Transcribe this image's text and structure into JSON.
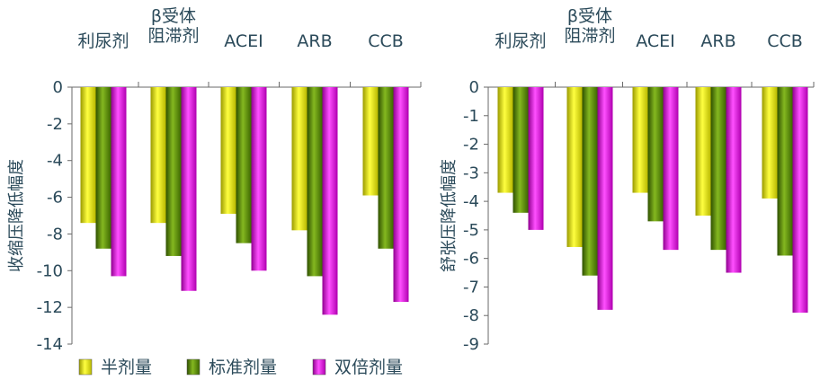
{
  "colors": {
    "half": "#e6e600",
    "standard": "#5a8a00",
    "double": "#e010e0",
    "text": "#2b4a5a",
    "axis": "#6a6a6a"
  },
  "legend": [
    "半剂量",
    "标准剂量",
    "双倍剂量"
  ],
  "chart_data": [
    {
      "type": "bar",
      "categories": [
        "利尿剂",
        "β受体阻滞剂",
        "ACEI",
        "ARB",
        "CCB"
      ],
      "category_lines": [
        [
          "利尿剂"
        ],
        [
          "β受体",
          "阻滞剂"
        ],
        [
          "ACEI"
        ],
        [
          "ARB"
        ],
        [
          "CCB"
        ]
      ],
      "ylabel": "收缩压降低幅度",
      "ylim": [
        -14,
        0
      ],
      "yticks": [
        0,
        -2,
        -4,
        -6,
        -8,
        -10,
        -12,
        -14
      ],
      "series": [
        {
          "name": "半剂量",
          "values": [
            -7.4,
            -7.4,
            -6.9,
            -7.8,
            -5.9
          ]
        },
        {
          "name": "标准剂量",
          "values": [
            -8.8,
            -9.2,
            -8.5,
            -10.3,
            -8.8
          ]
        },
        {
          "name": "双倍剂量",
          "values": [
            -10.3,
            -11.1,
            -10.0,
            -12.4,
            -11.7
          ]
        }
      ],
      "legend_position": "bottom-left"
    },
    {
      "type": "bar",
      "categories": [
        "利尿剂",
        "β受体阻滞剂",
        "ACEI",
        "ARB",
        "CCB"
      ],
      "category_lines": [
        [
          "利尿剂"
        ],
        [
          "β受体",
          "阻滞剂"
        ],
        [
          "ACEI"
        ],
        [
          "ARB"
        ],
        [
          "CCB"
        ]
      ],
      "ylabel": "舒张压降低幅度",
      "ylim": [
        -9,
        0
      ],
      "yticks": [
        0,
        -1,
        -2,
        -3,
        -4,
        -5,
        -6,
        -7,
        -8,
        -9
      ],
      "series": [
        {
          "name": "半剂量",
          "values": [
            -3.7,
            -5.6,
            -3.7,
            -4.5,
            -3.9
          ]
        },
        {
          "name": "标准剂量",
          "values": [
            -4.4,
            -6.6,
            -4.7,
            -5.7,
            -5.9
          ]
        },
        {
          "name": "双倍剂量",
          "values": [
            -5.0,
            -7.8,
            -5.7,
            -6.5,
            -7.9
          ]
        }
      ]
    }
  ]
}
